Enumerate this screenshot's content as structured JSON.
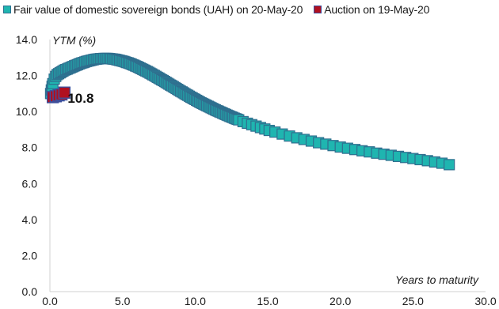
{
  "legend": {
    "fair_value": "Fair value of domestic sovereign bonds (UAH) on 20-May-20",
    "auction": "Auction on 19-May-20"
  },
  "colors": {
    "fair_value_fill": "#1fb5b0",
    "fair_value_edge": "#2f6f8f",
    "auction_fill": "#b01020",
    "auction_edge": "#3d4f9c",
    "axis": "#d0d0d0",
    "text": "#1a1a1a"
  },
  "chart_data": {
    "type": "scatter",
    "ylabel": "YTM (%)",
    "xlabel": "Years to maturity",
    "xlim": [
      0,
      30
    ],
    "ylim": [
      0,
      14
    ],
    "x_ticks": [
      "0.0",
      "5.0",
      "10.0",
      "15.0",
      "20.0",
      "25.0",
      "30.0"
    ],
    "y_ticks": [
      "0.0",
      "2.0",
      "4.0",
      "6.0",
      "8.0",
      "10.0",
      "12.0",
      "14.0"
    ],
    "grid": false,
    "series": [
      {
        "name": "Fair value of domestic sovereign bonds (UAH) on 20-May-20",
        "marker": "square",
        "x": [
          0.05,
          0.1,
          0.15,
          0.2,
          0.3,
          0.4,
          0.5,
          0.6,
          0.7,
          0.8,
          0.9,
          1.0,
          1.1,
          1.2,
          1.3,
          1.4,
          1.5,
          1.6,
          1.7,
          1.8,
          1.9,
          2.0,
          2.1,
          2.2,
          2.3,
          2.4,
          2.5,
          2.6,
          2.7,
          2.8,
          2.9,
          3.0,
          3.1,
          3.2,
          3.3,
          3.4,
          3.5,
          3.6,
          3.7,
          3.8,
          3.9,
          4.0,
          4.1,
          4.2,
          4.3,
          4.4,
          4.5,
          4.6,
          4.7,
          4.8,
          4.9,
          5.0,
          5.1,
          5.2,
          5.3,
          5.4,
          5.5,
          5.6,
          5.7,
          5.8,
          5.9,
          6.0,
          6.1,
          6.2,
          6.3,
          6.4,
          6.5,
          6.6,
          6.7,
          6.8,
          6.9,
          7.0,
          7.1,
          7.2,
          7.3,
          7.4,
          7.5,
          7.6,
          7.7,
          7.8,
          7.9,
          8.0,
          8.1,
          8.2,
          8.3,
          8.4,
          8.5,
          8.6,
          8.7,
          8.8,
          8.9,
          9.0,
          9.1,
          9.2,
          9.3,
          9.4,
          9.5,
          9.6,
          9.7,
          9.8,
          9.9,
          10.0,
          10.1,
          10.2,
          10.3,
          10.4,
          10.5,
          10.6,
          10.7,
          10.8,
          10.9,
          11.0,
          11.1,
          11.2,
          11.3,
          11.4,
          11.5,
          11.6,
          11.7,
          11.8,
          11.9,
          12.0,
          12.1,
          12.2,
          12.3,
          12.4,
          12.5,
          12.6,
          12.7,
          12.8,
          12.9,
          13.0,
          13.3,
          13.6,
          13.9,
          14.2,
          14.5,
          14.8,
          15.1,
          15.5,
          16.0,
          16.5,
          17.0,
          17.5,
          18.0,
          18.5,
          19.0,
          19.5,
          20.0,
          20.5,
          21.0,
          21.5,
          22.0,
          22.5,
          23.0,
          23.5,
          24.0,
          24.5,
          25.0,
          25.5,
          26.0,
          26.5,
          27.0,
          27.5
        ],
        "y": [
          11.0,
          11.2,
          11.4,
          11.55,
          11.8,
          11.95,
          12.05,
          12.1,
          12.15,
          12.2,
          12.25,
          12.3,
          12.33,
          12.36,
          12.4,
          12.43,
          12.47,
          12.5,
          12.54,
          12.57,
          12.6,
          12.64,
          12.67,
          12.7,
          12.72,
          12.75,
          12.78,
          12.8,
          12.82,
          12.84,
          12.86,
          12.88,
          12.9,
          12.91,
          12.92,
          12.93,
          12.94,
          12.94,
          12.95,
          12.95,
          12.95,
          12.95,
          12.94,
          12.93,
          12.92,
          12.91,
          12.9,
          12.88,
          12.86,
          12.84,
          12.82,
          12.8,
          12.78,
          12.75,
          12.72,
          12.7,
          12.67,
          12.64,
          12.6,
          12.57,
          12.53,
          12.5,
          12.46,
          12.42,
          12.38,
          12.34,
          12.3,
          12.26,
          12.22,
          12.18,
          12.13,
          12.09,
          12.04,
          12.0,
          11.95,
          11.9,
          11.86,
          11.81,
          11.76,
          11.72,
          11.67,
          11.62,
          11.57,
          11.52,
          11.47,
          11.43,
          11.38,
          11.33,
          11.28,
          11.23,
          11.18,
          11.13,
          11.09,
          11.04,
          10.99,
          10.94,
          10.9,
          10.85,
          10.8,
          10.76,
          10.71,
          10.67,
          10.62,
          10.58,
          10.53,
          10.49,
          10.45,
          10.41,
          10.37,
          10.33,
          10.29,
          10.25,
          10.21,
          10.17,
          10.13,
          10.09,
          10.05,
          10.02,
          9.98,
          9.95,
          9.91,
          9.87,
          9.84,
          9.8,
          9.77,
          9.73,
          9.7,
          9.67,
          9.63,
          9.6,
          9.57,
          9.54,
          9.44,
          9.35,
          9.27,
          9.19,
          9.11,
          9.03,
          8.95,
          8.86,
          8.75,
          8.64,
          8.54,
          8.45,
          8.36,
          8.27,
          8.19,
          8.11,
          8.03,
          7.96,
          7.89,
          7.82,
          7.76,
          7.69,
          7.63,
          7.57,
          7.51,
          7.45,
          7.39,
          7.33,
          7.27,
          7.2,
          7.13,
          7.05
        ]
      },
      {
        "name": "Auction on 19-May-20",
        "marker": "square",
        "x": [
          0.2,
          0.4,
          0.6,
          0.8,
          1.0
        ],
        "y": [
          10.8,
          10.85,
          10.9,
          10.95,
          11.05
        ]
      }
    ],
    "annotations": [
      {
        "text": "10.8",
        "x": 1.0,
        "y": 10.8
      }
    ]
  }
}
